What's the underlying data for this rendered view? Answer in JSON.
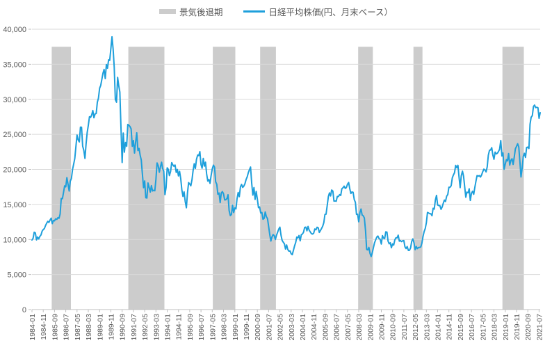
{
  "page": {
    "background": "#ffffff"
  },
  "legend": {
    "items": [
      {
        "label": "景気後退期",
        "type": "band",
        "color": "#cccccc"
      },
      {
        "label": "日経平均株価(円、月末ベース）",
        "type": "line",
        "color": "#1e9fdb"
      }
    ]
  },
  "chart_data": {
    "type": "line",
    "title": "",
    "xlabel": "",
    "ylabel": "",
    "ylim": [
      0,
      40000
    ],
    "y_tick_step": 5000,
    "y_tick_labels": [
      "0",
      "5,000",
      "10,000",
      "15,000",
      "20,000",
      "25,000",
      "30,000",
      "35,000",
      "40,000"
    ],
    "x_tick_interval_months": 10,
    "x_tick_labels": [
      "1984-01",
      "1984-11",
      "1985-09",
      "1986-07",
      "1987-05",
      "1988-03",
      "1989-01",
      "1989-11",
      "1990-09",
      "1991-07",
      "1992-05",
      "1993-03",
      "1994-01",
      "1994-11",
      "1995-09",
      "1996-07",
      "1997-05",
      "1998-03",
      "1999-01",
      "1999-11",
      "2000-09",
      "2001-07",
      "2002-05",
      "2003-03",
      "2004-01",
      "2004-11",
      "2005-09",
      "2006-07",
      "2007-05",
      "2008-03",
      "2009-01",
      "2009-11",
      "2010-09",
      "2011-07",
      "2012-05",
      "2013-03",
      "2014-01",
      "2014-11",
      "2015-09",
      "2016-07",
      "2017-05",
      "2018-03",
      "2019-01",
      "2019-11",
      "2020-09",
      "2021-07"
    ],
    "start_month": "1984-01",
    "end_month": "2021-08",
    "grid": {
      "color": "#d9d9d9",
      "axis_color": "#bfbfbf",
      "text_color": "#595959",
      "grid_on": true
    },
    "legend_position": "top",
    "recession_bands": {
      "color": "#cccccc",
      "top_value": 37500,
      "periods": [
        {
          "start": "1985-06",
          "end": "1986-11"
        },
        {
          "start": "1991-02",
          "end": "1993-10"
        },
        {
          "start": "1997-05",
          "end": "1999-01"
        },
        {
          "start": "2000-11",
          "end": "2002-01"
        },
        {
          "start": "2008-02",
          "end": "2009-03"
        },
        {
          "start": "2012-03",
          "end": "2012-11"
        },
        {
          "start": "2018-10",
          "end": "2020-05"
        }
      ]
    },
    "series": [
      {
        "name": "日経平均株価(円、月末ベース）",
        "color": "#1e9fdb",
        "values": [
          9927,
          10168,
          11035,
          10929,
          9940,
          10350,
          10075,
          10430,
          10649,
          11188,
          11428,
          11543,
          11992,
          12322,
          12590,
          12426,
          12758,
          13040,
          12261,
          12716,
          12654,
          12938,
          12860,
          13113,
          13024,
          13641,
          15860,
          15826,
          16739,
          17654,
          17510,
          18821,
          17853,
          16911,
          18325,
          18701,
          20023,
          20766,
          21567,
          23275,
          24902,
          24176,
          23916,
          26029,
          26010,
          23329,
          22687,
          21564,
          23622,
          25243,
          26260,
          27509,
          27417,
          27769,
          28397,
          27366,
          27923,
          27982,
          29579,
          30159,
          31581,
          31986,
          32839,
          33713,
          34267,
          32949,
          34954,
          34431,
          35637,
          35549,
          37269,
          38916,
          37189,
          34592,
          29980,
          29585,
          33131,
          31940,
          31036,
          25978,
          20984,
          25194,
          22455,
          23849,
          23293,
          26409,
          26292,
          26111,
          25790,
          23291,
          24121,
          22336,
          23916,
          25222,
          22687,
          22984,
          22023,
          21339,
          19346,
          17391,
          18348,
          15952,
          15910,
          18062,
          17399,
          16767,
          17684,
          16925,
          17024,
          16953,
          18591,
          20919,
          20552,
          19590,
          20380,
          21027,
          20106,
          19703,
          16406,
          17417,
          20229,
          19997,
          19112,
          19725,
          20974,
          20644,
          20449,
          20629,
          19564,
          19990,
          19070,
          19723,
          18650,
          17053,
          16140,
          16807,
          15437,
          14517,
          16677,
          18117,
          17913,
          17655,
          18547,
          19868,
          20813,
          20125,
          21407,
          22041,
          21956,
          22530,
          20693,
          20167,
          21556,
          20467,
          21021,
          19361,
          18330,
          18557,
          18003,
          19151,
          20069,
          20605,
          20331,
          18229,
          17888,
          16459,
          16636,
          15259,
          16628,
          16832,
          16527,
          15641,
          15671,
          15830,
          16379,
          14108,
          13406,
          13564,
          14884,
          13842,
          14499,
          14368,
          15837,
          16702,
          16112,
          17530,
          17861,
          17430,
          17605,
          17942,
          18558,
          18934,
          19540,
          19959,
          20337,
          17974,
          16332,
          17411,
          15727,
          16861,
          15747,
          14540,
          14649,
          13786,
          13844,
          12884,
          12999,
          13934,
          13262,
          12969,
          11861,
          10714,
          9775,
          10366,
          10697,
          10543,
          9998,
          10588,
          11025,
          11492,
          11764,
          10622,
          9878,
          9619,
          9383,
          8640,
          9216,
          8579,
          8340,
          8363,
          7973,
          7831,
          8425,
          9083,
          9563,
          10343,
          10219,
          10559,
          9806,
          10677,
          10784,
          11041,
          11715,
          11762,
          11236,
          11859,
          11326,
          11082,
          10824,
          10772,
          10900,
          11489,
          11388,
          11740,
          11669,
          11009,
          11277,
          11584,
          11900,
          12414,
          13574,
          13607,
          14872,
          16111,
          16649,
          16205,
          17060,
          16906,
          15467,
          15505,
          15457,
          16141,
          16128,
          16399,
          16274,
          17226,
          17383,
          17604,
          17288,
          17400,
          17876,
          18138,
          17249,
          16569,
          16786,
          16738,
          15681,
          15308,
          13592,
          13603,
          12526,
          13850,
          14339,
          13481,
          13377,
          13073,
          11260,
          8577,
          8512,
          8860,
          7994,
          7568,
          8110,
          8828,
          9523,
          9958,
          10357,
          10493,
          10133,
          10035,
          9346,
          10546,
          10198,
          10126,
          11090,
          11057,
          9769,
          9383,
          9537,
          8824,
          9369,
          9202,
          9937,
          10229,
          10237,
          10624,
          9755,
          9850,
          9694,
          9816,
          9833,
          8955,
          8700,
          8988,
          8435,
          8455,
          8803,
          9723,
          10084,
          9521,
          8543,
          9007,
          8695,
          8840,
          8870,
          8928,
          9446,
          10395,
          11139,
          11559,
          12398,
          13861,
          13775,
          13677,
          13668,
          13389,
          14456,
          14328,
          15662,
          16291,
          14915,
          14841,
          14828,
          14304,
          14632,
          15162,
          15621,
          15425,
          16174,
          16414,
          17460,
          17451,
          17674,
          18798,
          19207,
          19520,
          20563,
          20236,
          20585,
          18890,
          17388,
          19083,
          19747,
          19034,
          17518,
          16027,
          16759,
          16666,
          17235,
          15576,
          16569,
          16887,
          16450,
          17425,
          18308,
          19114,
          19041,
          19119,
          18909,
          19197,
          19651,
          20033,
          19925,
          19646,
          20356,
          22012,
          22725,
          22765,
          23098,
          22068,
          21454,
          22468,
          22202,
          22305,
          22554,
          22865,
          24120,
          21920,
          22351,
          20015,
          20773,
          21385,
          21206,
          22259,
          20601,
          21276,
          21522,
          20704,
          21756,
          22927,
          23294,
          23657,
          23205,
          21143,
          18917,
          20194,
          21878,
          22288,
          21710,
          23140,
          23185,
          22977,
          26434,
          27444,
          27663,
          28966,
          29179,
          28813,
          28860,
          28792,
          27284,
          28089
        ]
      }
    ]
  }
}
